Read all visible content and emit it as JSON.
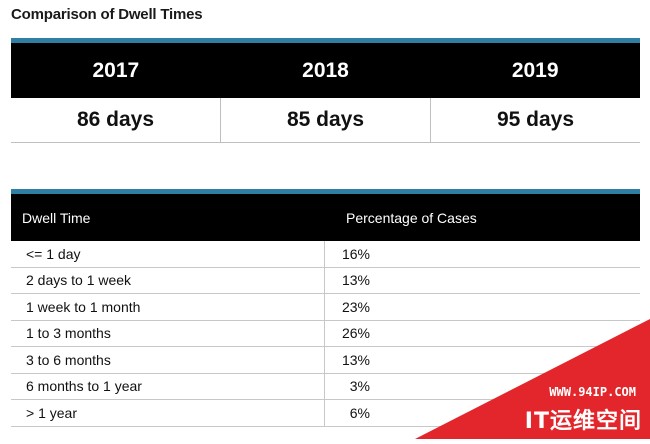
{
  "title": "Comparison of Dwell Times",
  "year_table": {
    "years": [
      "2017",
      "2018",
      "2019"
    ],
    "values": [
      "86 days",
      "85 days",
      "95 days"
    ]
  },
  "dwell_table": {
    "headers": [
      "Dwell Time",
      "Percentage of Cases"
    ],
    "rows": [
      {
        "range": "<= 1 day",
        "pct": "16%"
      },
      {
        "range": "2 days to 1 week",
        "pct": "13%"
      },
      {
        "range": "1 week to 1 month",
        "pct": "23%"
      },
      {
        "range": "1 to 3 months",
        "pct": "26%"
      },
      {
        "range": "3 to 6 months",
        "pct": "13%"
      },
      {
        "range": "6 months to 1 year",
        "pct": "3%"
      },
      {
        "range": "> 1 year",
        "pct": "6%"
      }
    ]
  },
  "watermark": {
    "url": "WWW.94IP.COM",
    "text": "IT运维空间"
  },
  "colors": {
    "accent": "#2f7fa5",
    "header_bg": "#000000",
    "watermark_red": "#e3262b"
  }
}
